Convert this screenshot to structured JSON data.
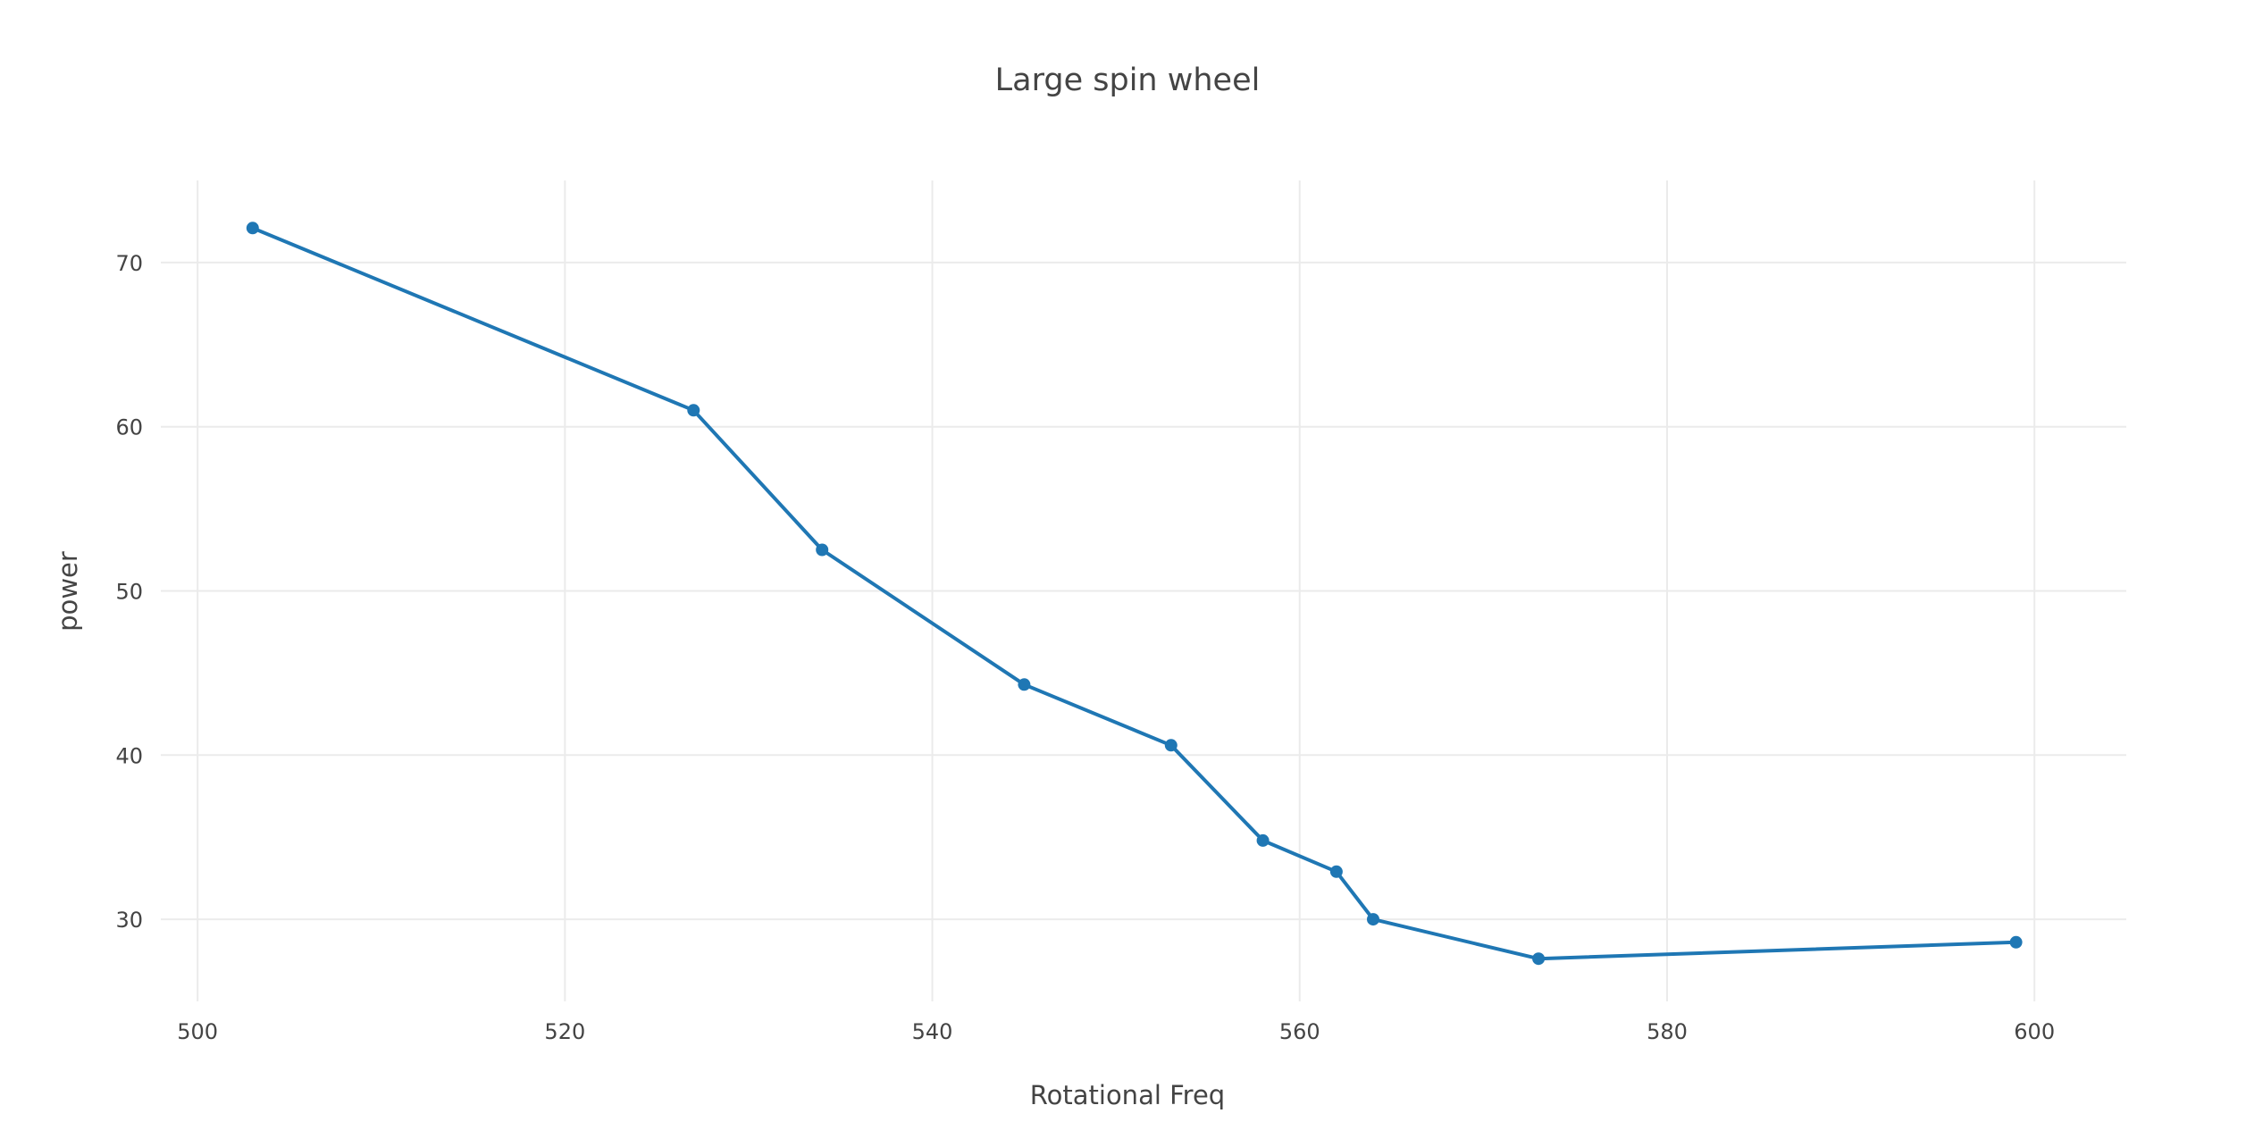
{
  "chart_data": {
    "type": "line",
    "title": "Large spin wheel",
    "xlabel": "Rotational Freq",
    "ylabel": "power",
    "xlim": [
      498,
      605
    ],
    "ylim": [
      25,
      75
    ],
    "xticks": [
      500,
      520,
      540,
      560,
      580,
      600
    ],
    "yticks": [
      30,
      40,
      50,
      60,
      70
    ],
    "grid": true,
    "legend": "none",
    "series": [
      {
        "color": "#1f77b4",
        "points": [
          {
            "x": 503,
            "y": 72.1
          },
          {
            "x": 527,
            "y": 61.0
          },
          {
            "x": 534,
            "y": 52.5
          },
          {
            "x": 545,
            "y": 44.3
          },
          {
            "x": 553,
            "y": 40.6
          },
          {
            "x": 558,
            "y": 34.8
          },
          {
            "x": 562,
            "y": 32.9
          },
          {
            "x": 564,
            "y": 30.0
          },
          {
            "x": 573,
            "y": 27.6
          },
          {
            "x": 599,
            "y": 28.6
          }
        ]
      }
    ]
  }
}
